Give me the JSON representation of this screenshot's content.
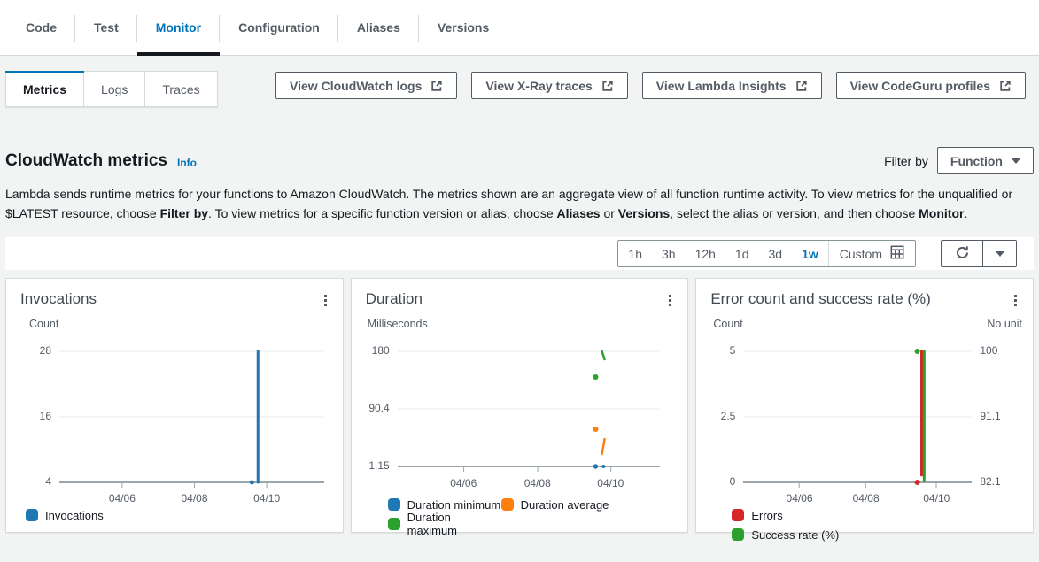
{
  "tabs": {
    "items": [
      {
        "label": "Code",
        "active": false
      },
      {
        "label": "Test",
        "active": false
      },
      {
        "label": "Monitor",
        "active": true
      },
      {
        "label": "Configuration",
        "active": false
      },
      {
        "label": "Aliases",
        "active": false
      },
      {
        "label": "Versions",
        "active": false
      }
    ]
  },
  "subtabs": {
    "items": [
      {
        "label": "Metrics",
        "active": true
      },
      {
        "label": "Logs",
        "active": false
      },
      {
        "label": "Traces",
        "active": false
      }
    ]
  },
  "actions": [
    {
      "label": "View CloudWatch logs",
      "icon": "external-link-icon"
    },
    {
      "label": "View X-Ray traces",
      "icon": "external-link-icon"
    },
    {
      "label": "View Lambda Insights",
      "icon": "external-link-icon"
    },
    {
      "label": "View CodeGuru profiles",
      "icon": "external-link-icon"
    }
  ],
  "metrics_header": {
    "title": "CloudWatch metrics",
    "info_label": "Info",
    "filter_by_label": "Filter by",
    "filter_value": "Function"
  },
  "description_segments": [
    {
      "text": "Lambda sends runtime metrics for your functions to Amazon CloudWatch. The metrics shown are an aggregate view of all function runtime activity. To view metrics for the unqualified or $LATEST resource, choose "
    },
    {
      "text": "Filter by",
      "bold": true
    },
    {
      "text": ". To view metrics for a specific function version or alias, choose "
    },
    {
      "text": "Aliases",
      "bold": true
    },
    {
      "text": " or "
    },
    {
      "text": "Versions",
      "bold": true
    },
    {
      "text": ", select the alias or version, and then choose "
    },
    {
      "text": "Monitor",
      "bold": true
    },
    {
      "text": "."
    }
  ],
  "time_toolbar": {
    "ranges": [
      {
        "label": "1h",
        "active": false
      },
      {
        "label": "3h",
        "active": false
      },
      {
        "label": "12h",
        "active": false
      },
      {
        "label": "1d",
        "active": false
      },
      {
        "label": "3d",
        "active": false
      },
      {
        "label": "1w",
        "active": true
      }
    ],
    "custom_label": "Custom",
    "icons": [
      "calendar-grid-icon",
      "refresh-icon",
      "chevron-down-icon"
    ]
  },
  "colors": {
    "accent_blue": "#0073bb",
    "tab_underline": "#16191f",
    "button_outline": "#545b64",
    "series_blue": "#1f77b4",
    "series_orange": "#ff7f0e",
    "series_green": "#2ca02c",
    "series_red": "#d62728"
  },
  "chart_data": [
    {
      "type": "line",
      "title": "Invocations",
      "unit_left": "Count",
      "kebab_icon": "kebab-menu-icon",
      "x_range": "1 week, 04/04 - 04/11",
      "x_ticks": [
        "04/06",
        "04/08",
        "04/10"
      ],
      "x_tick_pos": [
        0.237,
        0.51,
        0.783
      ],
      "y_ticks": [
        "28",
        "16",
        "4"
      ],
      "ylim": [
        4,
        28
      ],
      "readings": [
        {
          "series": "Invocations",
          "x": "~04/09",
          "y": 4
        },
        {
          "series": "Invocations",
          "x": "~04/09-04/10",
          "y": "spike 4 to 28"
        }
      ],
      "marks": [
        {
          "kind": "dot",
          "series": "Invocations",
          "color": "#1f77b4",
          "x": 0.727,
          "y": 1.0,
          "r": 2.5,
          "value": "4"
        },
        {
          "kind": "vline",
          "series": "Invocations",
          "color": "#1f77b4",
          "x": 0.75,
          "y1": 0.0,
          "y2": 1.0,
          "value": "4 to 28"
        }
      ],
      "legend": [
        {
          "label": "Invocations",
          "color": "#1f77b4"
        }
      ]
    },
    {
      "type": "line",
      "title": "Duration",
      "unit_left": "Milliseconds",
      "kebab_icon": "kebab-menu-icon",
      "x_range": "1 week, 04/04 - 04/11",
      "x_ticks": [
        "04/06",
        "04/08",
        "04/10"
      ],
      "x_tick_pos": [
        0.252,
        0.534,
        0.813
      ],
      "y_ticks": [
        "180",
        "90.4",
        "1.15"
      ],
      "ylim": [
        1.15,
        180
      ],
      "readings": [
        {
          "series": "Duration maximum",
          "x": "~04/09",
          "y": "151 ms"
        },
        {
          "series": "Duration maximum",
          "x": "~04/09-04/10",
          "y": "180 to 171 ms"
        },
        {
          "series": "Duration average",
          "x": "~04/09",
          "y": "59 ms"
        },
        {
          "series": "Duration average",
          "x": "~04/09-04/10",
          "y": "15 to 32 ms"
        },
        {
          "series": "Duration minimum",
          "x": "~04/09",
          "y": "1.15 ms"
        },
        {
          "series": "Duration minimum",
          "x": "~04/09-04/10",
          "y": "1.2 ms"
        }
      ],
      "marks": [
        {
          "kind": "seg",
          "series": "Duration maximum",
          "color": "#2ca02c",
          "x1": 0.779,
          "y1": 0.0,
          "x2": 0.789,
          "y2": 0.069,
          "value": "180 to 171 ms"
        },
        {
          "kind": "dot",
          "series": "Duration maximum",
          "color": "#2ca02c",
          "x": 0.755,
          "y": 0.223,
          "r": 3,
          "value": "151 ms"
        },
        {
          "kind": "dot",
          "series": "Duration average",
          "color": "#ff7f0e",
          "x": 0.755,
          "y": 0.677,
          "r": 3,
          "value": "59 ms"
        },
        {
          "kind": "seg",
          "series": "Duration average",
          "color": "#ff7f0e",
          "x1": 0.779,
          "y1": 0.892,
          "x2": 0.789,
          "y2": 0.762,
          "value": "15 to 32 ms"
        },
        {
          "kind": "dot",
          "series": "Duration minimum",
          "color": "#1f77b4",
          "x": 0.755,
          "y": 1.0,
          "r": 2.7,
          "value": "1.15 ms"
        },
        {
          "kind": "dot",
          "series": "Duration minimum",
          "color": "#1f77b4",
          "x": 0.785,
          "y": 1.0,
          "r": 2,
          "value": "1.2 ms"
        }
      ],
      "legend": [
        {
          "label": "Duration minimum",
          "color": "#1f77b4"
        },
        {
          "label": "Duration average",
          "color": "#ff7f0e"
        },
        {
          "label": "Duration maximum",
          "color": "#2ca02c"
        }
      ]
    },
    {
      "type": "line",
      "title": "Error count and success rate (%)",
      "unit_left": "Count",
      "unit_right": "No unit",
      "kebab_icon": "kebab-menu-icon",
      "x_range": "1 week, 04/04 - 04/11",
      "x_ticks": [
        "04/06",
        "04/08",
        "04/10"
      ],
      "x_tick_pos": [
        0.245,
        0.536,
        0.845
      ],
      "y_ticks": [
        "5",
        "2.5",
        "0"
      ],
      "y_ticks_right": [
        "100",
        "91.1",
        "82.1"
      ],
      "ylim": [
        0,
        5
      ],
      "ylim_right": [
        82.1,
        100
      ],
      "readings": [
        {
          "series": "Errors",
          "x": "~04/09",
          "y": 0
        },
        {
          "series": "Errors",
          "x": "~04/09-04/10",
          "y": "spike 0 to 5"
        },
        {
          "series": "Success rate (%)",
          "x": "~04/09",
          "y": "100%"
        },
        {
          "series": "Success rate (%)",
          "x": "~04/09-04/10",
          "y": "drop 100% to ~82.3%"
        }
      ],
      "marks": [
        {
          "kind": "dot",
          "series": "Success rate (%)",
          "color": "#2ca02c",
          "x": 0.762,
          "y": 0.0,
          "r": 3,
          "value": "100%"
        },
        {
          "kind": "vline",
          "series": "Errors",
          "color": "#d62728",
          "x": 0.781,
          "y1": 0.0,
          "y2": 0.945,
          "value": "0 to 5"
        },
        {
          "kind": "vline",
          "series": "Success rate (%)",
          "color": "#2ca02c",
          "x": 0.792,
          "y1": 0.0,
          "y2": 0.99,
          "value": "100% to 82.3%"
        },
        {
          "kind": "dot",
          "series": "Errors",
          "color": "#d62728",
          "x": 0.762,
          "y": 1.0,
          "r": 3,
          "value": "0"
        }
      ],
      "legend": [
        {
          "label": "Errors",
          "color": "#d62728"
        },
        {
          "label": "Success rate (%)",
          "color": "#2ca02c"
        }
      ]
    }
  ]
}
